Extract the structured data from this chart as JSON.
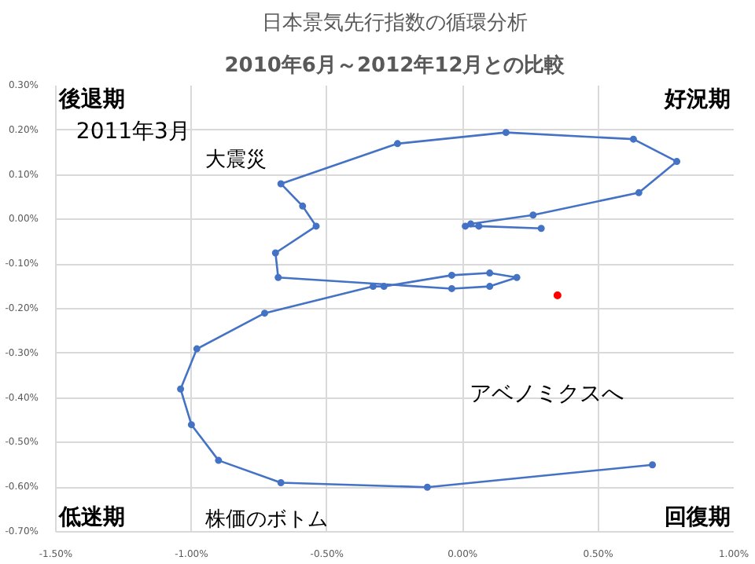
{
  "chart_data": {
    "type": "line",
    "title": "日本景気先行指数の循環分析",
    "subtitle": "2010年6月～2012年12月との比較",
    "annotations": [
      "後退期",
      "好況期",
      "低迷期",
      "回復期",
      "2011年3月",
      "大震災",
      "株価のボトム",
      "アベノミクスへ"
    ],
    "series": [
      {
        "color": "#4472c4",
        "x": [
          0.29,
          0.06,
          0.01,
          0.03,
          0.26,
          0.65,
          0.79,
          0.63,
          0.16,
          -0.24,
          -0.67,
          -0.59,
          -0.54,
          -0.69,
          -0.68,
          -0.04,
          0.1,
          0.2,
          0.1,
          -0.04,
          -0.29,
          -0.33,
          -0.73,
          -0.98,
          -1.04,
          -1.0,
          -0.9,
          -0.67,
          -0.13,
          0.7
        ],
        "values": [
          -0.02,
          -0.015,
          -0.015,
          -0.01,
          0.01,
          0.06,
          0.13,
          0.18,
          0.195,
          0.17,
          0.08,
          0.03,
          -0.015,
          -0.075,
          -0.13,
          -0.155,
          -0.15,
          -0.13,
          -0.12,
          -0.125,
          -0.15,
          -0.15,
          -0.21,
          -0.29,
          -0.38,
          -0.46,
          -0.54,
          -0.59,
          -0.6,
          -0.55
        ]
      },
      {
        "type": "scatter",
        "color": "#ff0000",
        "x": [
          0.35
        ],
        "values": [
          -0.17
        ]
      }
    ],
    "xlim": [
      -1.5,
      1.0
    ],
    "ylim": [
      -0.7,
      0.3
    ],
    "xticks": [
      {
        "value": -1.5,
        "label": "-1.50%"
      },
      {
        "value": -1.0,
        "label": "-1.00%"
      },
      {
        "value": -0.5,
        "label": "-0.50%"
      },
      {
        "value": 0,
        "label": "0.00%"
      },
      {
        "value": 0.5,
        "label": "0.50%"
      },
      {
        "value": 1.0,
        "label": "1.00%"
      }
    ],
    "yticks": [
      {
        "value": -0.7,
        "label": "-0.70%"
      },
      {
        "value": -0.6,
        "label": "-0.60%"
      },
      {
        "value": -0.5,
        "label": "-0.50%"
      },
      {
        "value": -0.4,
        "label": "-0.40%"
      },
      {
        "value": -0.3,
        "label": "-0.30%"
      },
      {
        "value": -0.2,
        "label": "-0.20%"
      },
      {
        "value": -0.1,
        "label": "-0.10%"
      },
      {
        "value": 0,
        "label": "0.00%"
      },
      {
        "value": 0.1,
        "label": "0.10%"
      },
      {
        "value": 0.2,
        "label": "0.20%"
      },
      {
        "value": 0.3,
        "label": "0.30%"
      }
    ],
    "grid": true,
    "marker": "circle",
    "line_style": "solid"
  }
}
